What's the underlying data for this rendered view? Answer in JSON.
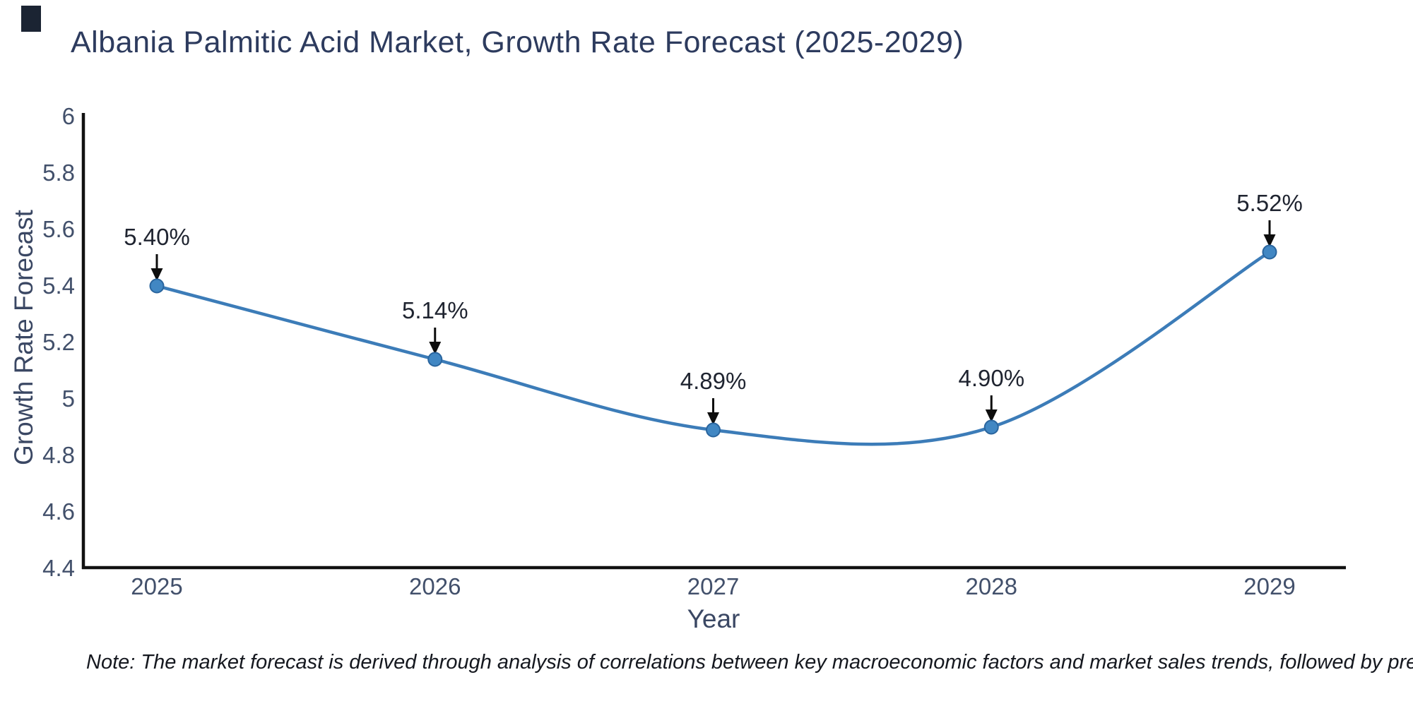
{
  "logo": {
    "color": "#1b2433"
  },
  "title": {
    "text": "Albania Palmitic Acid Market, Growth Rate Forecast (2025-2029)",
    "color": "#2d3b5e"
  },
  "note": {
    "text": "Note: The market forecast is derived through analysis of correlations between key macroeconomic factors and market sales trends, followed by predictive modeling to project future sales",
    "color": "#15181f"
  },
  "colors": {
    "tick_label": "#42506b",
    "axis_title": "#3a4763",
    "annotation": "#1f2430",
    "axis_line": "#111111"
  },
  "chart_data": {
    "type": "line",
    "title": "Albania Palmitic Acid Market, Growth Rate Forecast (2025-2029)",
    "xlabel": "Year",
    "ylabel": "Growth Rate Forecast",
    "categories": [
      "2025",
      "2026",
      "2027",
      "2028",
      "2029"
    ],
    "x": [
      2025,
      2026,
      2027,
      2028,
      2029
    ],
    "values": [
      5.4,
      5.14,
      4.89,
      4.9,
      5.52
    ],
    "point_labels": [
      "5.40%",
      "5.14%",
      "4.89%",
      "4.90%",
      "5.52%"
    ],
    "ylim": [
      4.4,
      6
    ],
    "yticks": [
      4.4,
      4.6,
      4.8,
      5,
      5.2,
      5.4,
      5.6,
      5.8,
      6
    ],
    "ytick_labels": [
      "4.4",
      "4.6",
      "4.8",
      "5",
      "5.2",
      "5.4",
      "5.6",
      "5.8",
      "6"
    ],
    "line_shape": "spline",
    "grid": false,
    "legend_position": "none",
    "line_color": "#3c7cb8",
    "marker_color": "#4187c3",
    "marker_edge_color": "#2a659e",
    "arrow_color": "#0d0d0d"
  }
}
